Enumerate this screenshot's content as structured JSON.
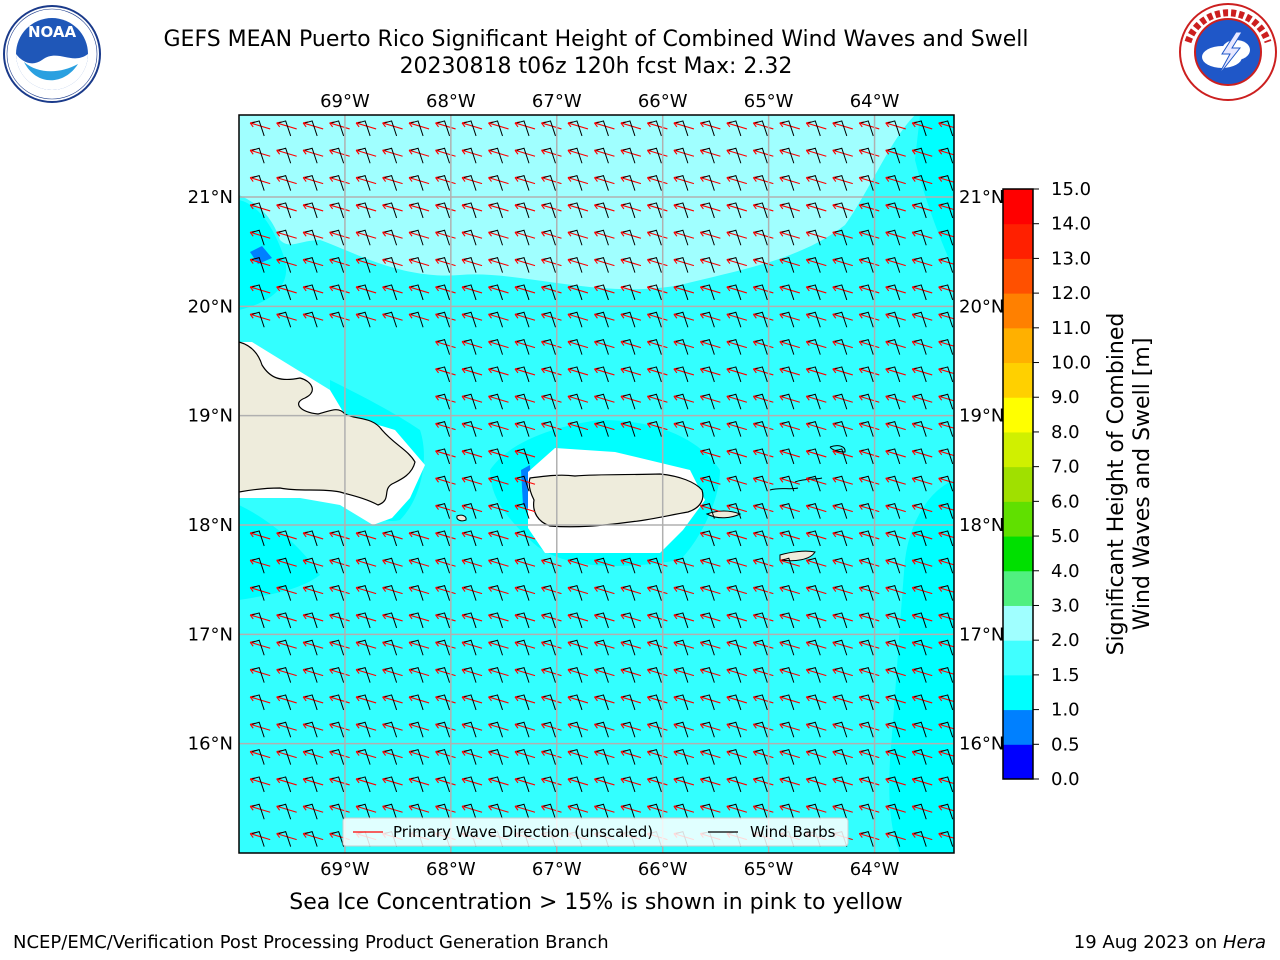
{
  "header": {
    "title_line1": "GEFS MEAN Puerto Rico Significant Height of Combined Wind Waves and Swell",
    "title_line2": "20230818 t06z 120h fcst   Max: 2.32"
  },
  "logos": {
    "left": {
      "icon": "noaa-logo",
      "text": "NOAA",
      "ring_text": "NATIONAL OCEANIC AND ATMOSPHERIC ADMINISTRATION · U.S. DEPARTMENT OF COMMERCE"
    },
    "right": {
      "icon": "nws-logo",
      "ring_text": "NATIONAL WEATHER SERVICE"
    }
  },
  "map": {
    "lon_labels": [
      "69°W",
      "68°W",
      "67°W",
      "66°W",
      "65°W",
      "64°W"
    ],
    "lat_labels": [
      "21°N",
      "20°N",
      "19°N",
      "18°N",
      "17°N",
      "16°N"
    ],
    "lon_range": [
      -70.0,
      -63.25
    ],
    "lat_range": [
      15.0,
      21.75
    ],
    "grid": true,
    "land_color": "#eeecdc",
    "ocean_color": "#33ffff",
    "legend": {
      "placement": "bottom-center",
      "wave_label": "Primary Wave Direction (unscaled)",
      "wave_color": "#ff0000",
      "barb_label": "Wind Barbs",
      "barb_color": "#000000"
    }
  },
  "colorbar": {
    "label": "Significant Height of Combined\nWind Waves and Swell [m]",
    "label_line1": "Significant Height of Combined",
    "label_line2": "Wind Waves and Swell [m]",
    "ticks": [
      "0.0",
      "0.5",
      "1.0",
      "1.5",
      "2.0",
      "3.0",
      "4.0",
      "5.0",
      "6.0",
      "7.0",
      "8.0",
      "9.0",
      "10.0",
      "11.0",
      "12.0",
      "13.0",
      "14.0",
      "15.0"
    ],
    "colors": [
      "#0000ff",
      "#0080ff",
      "#00ffff",
      "#40ffff",
      "#a0ffff",
      "#50f080",
      "#00e000",
      "#60e000",
      "#a0e000",
      "#d0f000",
      "#ffff00",
      "#ffd000",
      "#ffb000",
      "#ff8000",
      "#ff5000",
      "#ff2000",
      "#ff0000"
    ]
  },
  "subcaption": "Sea Ice Concentration > 15% is shown in pink to yellow",
  "footer": {
    "left": "NCEP/EMC/Verification Post Processing Product Generation Branch",
    "right_prefix": "19 Aug 2023 on ",
    "right_host": "Hera"
  }
}
